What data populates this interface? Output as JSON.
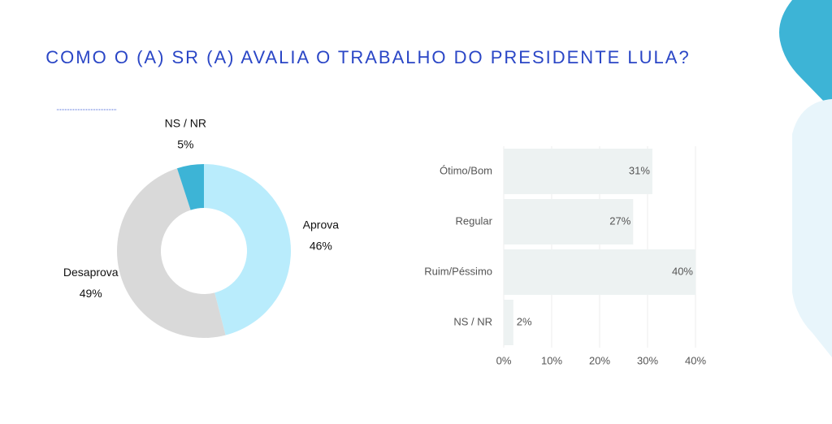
{
  "title": "COMO O (A) SR (A) AVALIA O TRABALHO DO PRESIDENTE LULA?",
  "chart_data": [
    {
      "type": "donut",
      "categories": [
        "Aprova",
        "Desaprova",
        "NS / NR"
      ],
      "values": [
        46,
        49,
        5
      ],
      "value_labels": [
        "46%",
        "49%",
        "5%"
      ],
      "colors": [
        "#b9ecfc",
        "#d9d9d9",
        "#3db4d6"
      ]
    },
    {
      "type": "hbar",
      "categories": [
        "Ótimo/Bom",
        "Regular",
        "Ruim/Péssimo",
        "NS / NR"
      ],
      "values": [
        31,
        27,
        40,
        2
      ],
      "value_labels": [
        "31%",
        "27%",
        "40%",
        "2%"
      ],
      "color": "#edf2f2",
      "xlim": [
        0,
        40
      ],
      "xticks": [
        {
          "value": 0,
          "label": "0%"
        },
        {
          "value": 10,
          "label": "10%"
        },
        {
          "value": 20,
          "label": "20%"
        },
        {
          "value": 30,
          "label": "30%"
        },
        {
          "value": 40,
          "label": "40%"
        }
      ],
      "grid": true
    }
  ]
}
